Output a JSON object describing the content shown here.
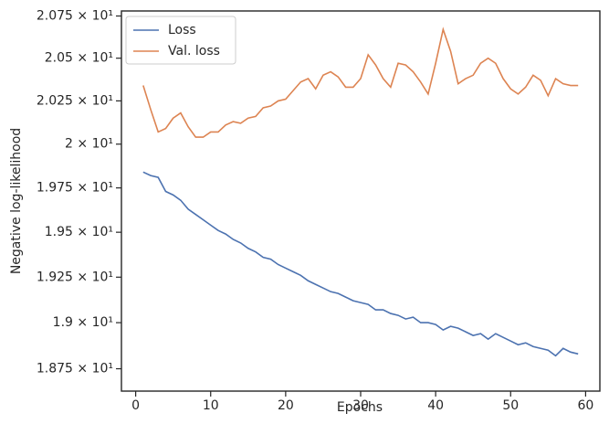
{
  "chart_data": {
    "type": "line",
    "xlabel": "Epochs",
    "ylabel": "Negative log-likelihood",
    "x": [
      1,
      2,
      3,
      4,
      5,
      6,
      7,
      8,
      9,
      10,
      11,
      12,
      13,
      14,
      15,
      16,
      17,
      18,
      19,
      20,
      21,
      22,
      23,
      24,
      25,
      26,
      27,
      28,
      29,
      30,
      31,
      32,
      33,
      34,
      35,
      36,
      37,
      38,
      39,
      40,
      41,
      42,
      43,
      44,
      45,
      46,
      47,
      48,
      49,
      50,
      51,
      52,
      53,
      54,
      55,
      56,
      57,
      58,
      59
    ],
    "series": [
      {
        "name": "Loss",
        "color": "#4c72b0",
        "values": [
          19.84,
          19.82,
          19.81,
          19.73,
          19.71,
          19.68,
          19.63,
          19.6,
          19.57,
          19.54,
          19.51,
          19.49,
          19.46,
          19.44,
          19.41,
          19.39,
          19.36,
          19.35,
          19.32,
          19.3,
          19.28,
          19.26,
          19.23,
          19.21,
          19.19,
          19.17,
          19.16,
          19.14,
          19.12,
          19.11,
          19.1,
          19.07,
          19.07,
          19.05,
          19.04,
          19.02,
          19.03,
          19.0,
          19.0,
          18.99,
          18.96,
          18.98,
          18.97,
          18.95,
          18.93,
          18.94,
          18.91,
          18.94,
          18.92,
          18.9,
          18.88,
          18.89,
          18.87,
          18.86,
          18.85,
          18.82,
          18.86,
          18.84,
          18.83
        ]
      },
      {
        "name": "Val. loss",
        "color": "#dd8452",
        "values": [
          20.34,
          20.2,
          20.07,
          20.09,
          20.15,
          20.18,
          20.1,
          20.04,
          20.04,
          20.07,
          20.07,
          20.11,
          20.13,
          20.12,
          20.15,
          20.16,
          20.21,
          20.22,
          20.25,
          20.26,
          20.31,
          20.36,
          20.38,
          20.32,
          20.4,
          20.42,
          20.39,
          20.33,
          20.33,
          20.38,
          20.52,
          20.46,
          20.38,
          20.33,
          20.47,
          20.46,
          20.42,
          20.36,
          20.29,
          20.47,
          20.67,
          20.54,
          20.35,
          20.38,
          20.4,
          20.47,
          20.5,
          20.47,
          20.38,
          20.32,
          20.29,
          20.33,
          20.4,
          20.37,
          20.28,
          20.38,
          20.35,
          20.34,
          20.34
        ]
      }
    ],
    "xlim": [
      -1.9,
      61.9
    ],
    "xticks": [
      0,
      10,
      20,
      30,
      40,
      50,
      60
    ],
    "ylim": [
      18.63,
      20.78
    ],
    "yscale": "log",
    "yticks": [
      {
        "value": 18.75,
        "label": "1.875 × 10¹"
      },
      {
        "value": 19,
        "label": "1.9 × 10¹"
      },
      {
        "value": 19.25,
        "label": "1.925 × 10¹"
      },
      {
        "value": 19.5,
        "label": "1.95 × 10¹"
      },
      {
        "value": 19.75,
        "label": "1.975 × 10¹"
      },
      {
        "value": 20,
        "label": "2 × 10¹"
      },
      {
        "value": 20.25,
        "label": "2.025 × 10¹"
      },
      {
        "value": 20.5,
        "label": "2.05 × 10¹"
      },
      {
        "value": 20.75,
        "label": "2.075 × 10¹"
      }
    ],
    "legend": "upper left"
  }
}
